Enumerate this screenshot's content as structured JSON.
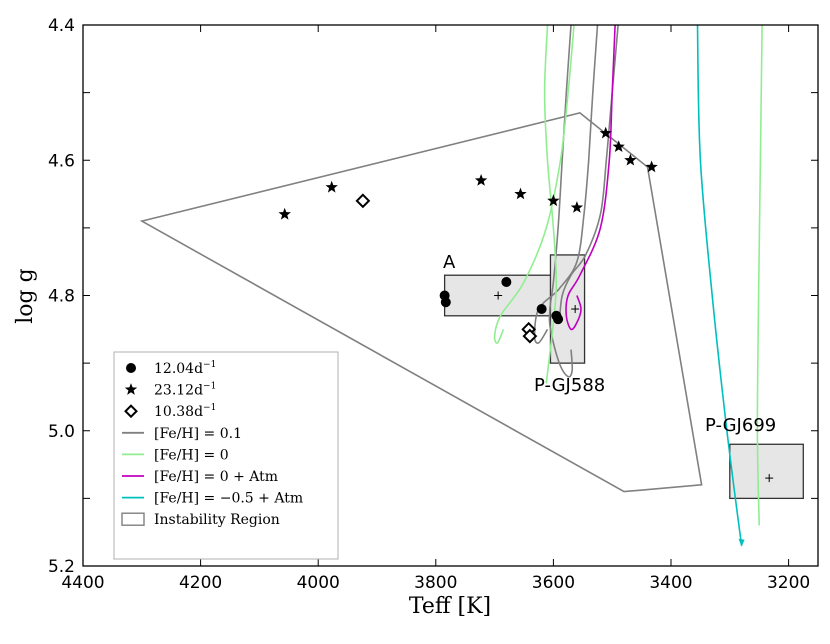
{
  "chart_data": {
    "type": "scatter",
    "xlabel": "Teff [K]",
    "ylabel": "log g",
    "xlim": [
      4400,
      3150
    ],
    "ylim": [
      4.4,
      5.2
    ],
    "x_inverted": true,
    "y_inverted": true,
    "xticks": [
      4400,
      4200,
      4000,
      3800,
      3600,
      3400,
      3200
    ],
    "yticks_labeled": [
      4.4,
      4.6,
      4.8,
      5.0,
      5.2
    ],
    "yticks_minor": [
      4.5,
      4.7,
      4.9,
      5.1
    ],
    "tick_labels_x": [
      "4400",
      "4200",
      "4000",
      "3800",
      "3600",
      "3400",
      "3200"
    ],
    "tick_labels_y": [
      "4.4",
      "4.6",
      "4.8",
      "5.0",
      "5.2"
    ],
    "colors": {
      "feh_01": "#808080",
      "feh_0": "#90ee90",
      "feh_0_atm": "#bf00bf",
      "feh_m05_atm": "#00bfbf",
      "region_edge": "#808080",
      "box_fill": "#e6e6e6"
    },
    "legend": {
      "placement": "bottom-left",
      "entries": [
        {
          "key": "circle",
          "label": "12.04d",
          "sup": "−1"
        },
        {
          "key": "star",
          "label": "23.12d",
          "sup": "−1"
        },
        {
          "key": "diamond",
          "label": "10.38d",
          "sup": "−1"
        },
        {
          "key": "feh_01",
          "label": "[Fe/H] =  0.1"
        },
        {
          "key": "feh_0",
          "label": "[Fe/H] =  0"
        },
        {
          "key": "feh_0_atm",
          "label": "[Fe/H] =  0    + Atm"
        },
        {
          "key": "feh_m05_atm",
          "label": "[Fe/H] = −0.5  + Atm"
        },
        {
          "key": "region",
          "label": "Instability Region"
        }
      ]
    },
    "series": [
      {
        "name": "12.04d-1",
        "marker": "circle",
        "points": [
          [
            3785,
            4.8
          ],
          [
            3783,
            4.81
          ],
          [
            3680,
            4.78
          ],
          [
            3620,
            4.82
          ],
          [
            3595,
            4.83
          ],
          [
            3592,
            4.835
          ]
        ]
      },
      {
        "name": "23.12d-1",
        "marker": "star",
        "points": [
          [
            4057,
            4.68
          ],
          [
            3977,
            4.64
          ],
          [
            3723,
            4.63
          ],
          [
            3656,
            4.65
          ],
          [
            3600,
            4.66
          ],
          [
            3560,
            4.67
          ],
          [
            3511,
            4.56
          ],
          [
            3489,
            4.58
          ],
          [
            3469,
            4.6
          ],
          [
            3433,
            4.61
          ]
        ]
      },
      {
        "name": "10.38d-1",
        "marker": "diamond",
        "points": [
          [
            3924,
            4.66
          ],
          [
            3642,
            4.85
          ],
          [
            3640,
            4.86
          ]
        ]
      },
      {
        "name": "Instability Region",
        "type": "polygon",
        "points": [
          [
            4300,
            4.69
          ],
          [
            3555,
            4.53
          ],
          [
            3440,
            4.61
          ],
          [
            3348,
            5.08
          ],
          [
            3480,
            5.09
          ]
        ]
      },
      {
        "name": "[Fe/H] = 0.1",
        "type": "line",
        "color_key": "feh_01",
        "tracks": [
          [
            [
              3570,
              4.4
            ],
            [
              3578,
              4.5
            ],
            [
              3585,
              4.6
            ],
            [
              3592,
              4.7
            ],
            [
              3600,
              4.78
            ],
            [
              3606,
              4.82
            ],
            [
              3605,
              4.85
            ],
            [
              3590,
              4.9
            ],
            [
              3575,
              4.92
            ],
            [
              3568,
              4.91
            ],
            [
              3570,
              4.88
            ]
          ],
          [
            [
              3525,
              4.4
            ],
            [
              3533,
              4.5
            ],
            [
              3540,
              4.6
            ],
            [
              3548,
              4.68
            ],
            [
              3560,
              4.75
            ],
            [
              3590,
              4.79
            ],
            [
              3625,
              4.82
            ],
            [
              3632,
              4.86
            ],
            [
              3625,
              4.87
            ],
            [
              3610,
              4.85
            ]
          ],
          [
            [
              3490,
              4.4
            ],
            [
              3500,
              4.5
            ],
            [
              3510,
              4.6
            ],
            [
              3520,
              4.68
            ],
            [
              3545,
              4.74
            ],
            [
              3570,
              4.77
            ],
            [
              3585,
              4.8
            ],
            [
              3590,
              4.84
            ]
          ]
        ]
      },
      {
        "name": "[Fe/H] = 0",
        "type": "line",
        "color_key": "feh_0",
        "tracks": [
          [
            [
              3565,
              4.4
            ],
            [
              3575,
              4.5
            ],
            [
              3588,
              4.6
            ],
            [
              3612,
              4.7
            ],
            [
              3650,
              4.78
            ],
            [
              3690,
              4.83
            ],
            [
              3700,
              4.86
            ],
            [
              3695,
              4.87
            ],
            [
              3685,
              4.85
            ]
          ],
          [
            [
              3610,
              4.4
            ],
            [
              3615,
              4.5
            ],
            [
              3610,
              4.6
            ],
            [
              3600,
              4.7
            ],
            [
              3595,
              4.78
            ],
            [
              3600,
              4.84
            ],
            [
              3608,
              4.9
            ],
            [
              3612,
              4.93
            ]
          ],
          [
            [
              3245,
              4.4
            ],
            [
              3248,
              4.6
            ],
            [
              3251,
              4.8
            ],
            [
              3253,
              5.0
            ],
            [
              3250,
              5.14
            ]
          ]
        ]
      },
      {
        "name": "[Fe/H] = 0 + Atm",
        "type": "line",
        "color_key": "feh_0_atm",
        "tracks": [
          [
            [
              3495,
              4.4
            ],
            [
              3500,
              4.5
            ],
            [
              3505,
              4.6
            ],
            [
              3520,
              4.7
            ],
            [
              3555,
              4.77
            ],
            [
              3575,
              4.8
            ],
            [
              3578,
              4.83
            ],
            [
              3570,
              4.85
            ],
            [
              3560,
              4.84
            ],
            [
              3553,
              4.82
            ],
            [
              3560,
              4.8
            ]
          ]
        ]
      },
      {
        "name": "[Fe/H] = -0.5 + Atm",
        "type": "line",
        "color_key": "feh_m05_atm",
        "tracks": [
          [
            [
              3355,
              4.4
            ],
            [
              3350,
              4.6
            ],
            [
              3330,
              4.8
            ],
            [
              3305,
              5.0
            ],
            [
              3280,
              5.17
            ]
          ]
        ]
      }
    ],
    "boxes": [
      {
        "name": "A",
        "label": "A",
        "xrange": [
          3785,
          3595
        ],
        "yrange": [
          4.77,
          4.83
        ],
        "center": [
          3694,
          4.8
        ]
      },
      {
        "name": "P-GJ588",
        "label": "P-GJ588",
        "xrange": [
          3605,
          3547
        ],
        "yrange": [
          4.74,
          4.9
        ],
        "center": [
          3563,
          4.82
        ]
      },
      {
        "name": "P-GJ699",
        "label": "P-GJ699",
        "xrange": [
          3300,
          3175
        ],
        "yrange": [
          5.02,
          5.1
        ],
        "center": [
          3233,
          5.07
        ]
      }
    ]
  }
}
